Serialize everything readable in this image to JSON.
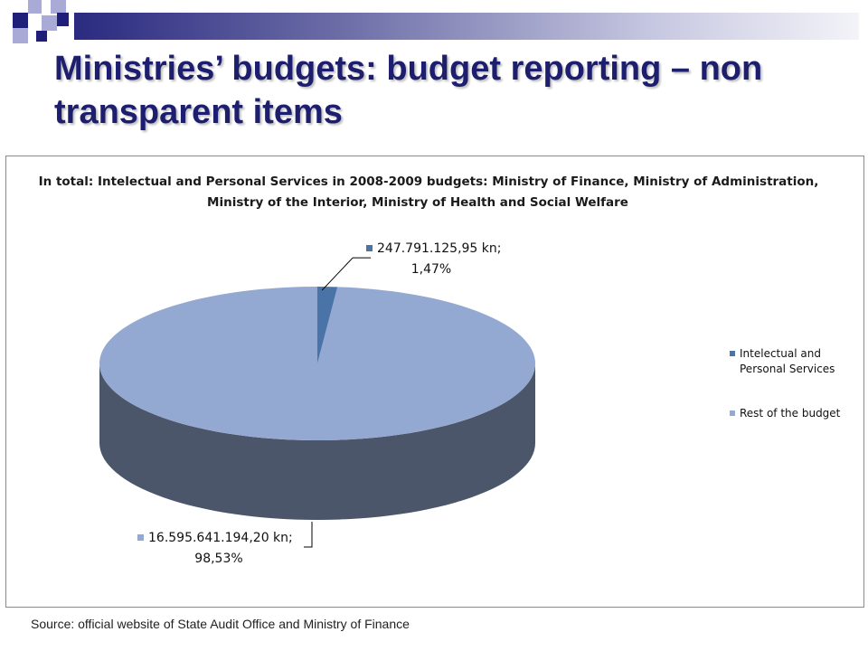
{
  "slide": {
    "title": "Ministries’ budgets: budget reporting – non transparent items",
    "source": "Source: official website of State Audit Office and Ministry of Finance"
  },
  "colors": {
    "navy": "#1f1f7a",
    "lavender": "#a9abd6",
    "title": "#1e1e6e",
    "slice_small": "#4a73a8",
    "slice_large_top": "#94a9d1",
    "slice_large_side": "#4b566b"
  },
  "chart_data": {
    "type": "pie",
    "title_lines": [
      "In total: Intelectual and Personal Services in 2008-2009 budgets: Ministry of Finance, Ministry of Administration,",
      "Ministry of the Interior, Ministry of Health and Social Welfare"
    ],
    "three_d": true,
    "legend_position": "right",
    "slices": [
      {
        "name": "Intelectual and Personal Services",
        "legend_lines": [
          "Intelectual and",
          "Personal Services"
        ],
        "value": 247791125.95,
        "percent": 1.47,
        "label_lines": [
          "247.791.125,95 kn;",
          "1,47%"
        ],
        "color": "#4a73a8"
      },
      {
        "name": "Rest of the budget",
        "legend_lines": [
          "Rest of the budget"
        ],
        "value": 16595641194.2,
        "percent": 98.53,
        "label_lines": [
          "16.595.641.194,20 kn;",
          "98,53%"
        ],
        "color": "#94a9d1"
      }
    ]
  }
}
